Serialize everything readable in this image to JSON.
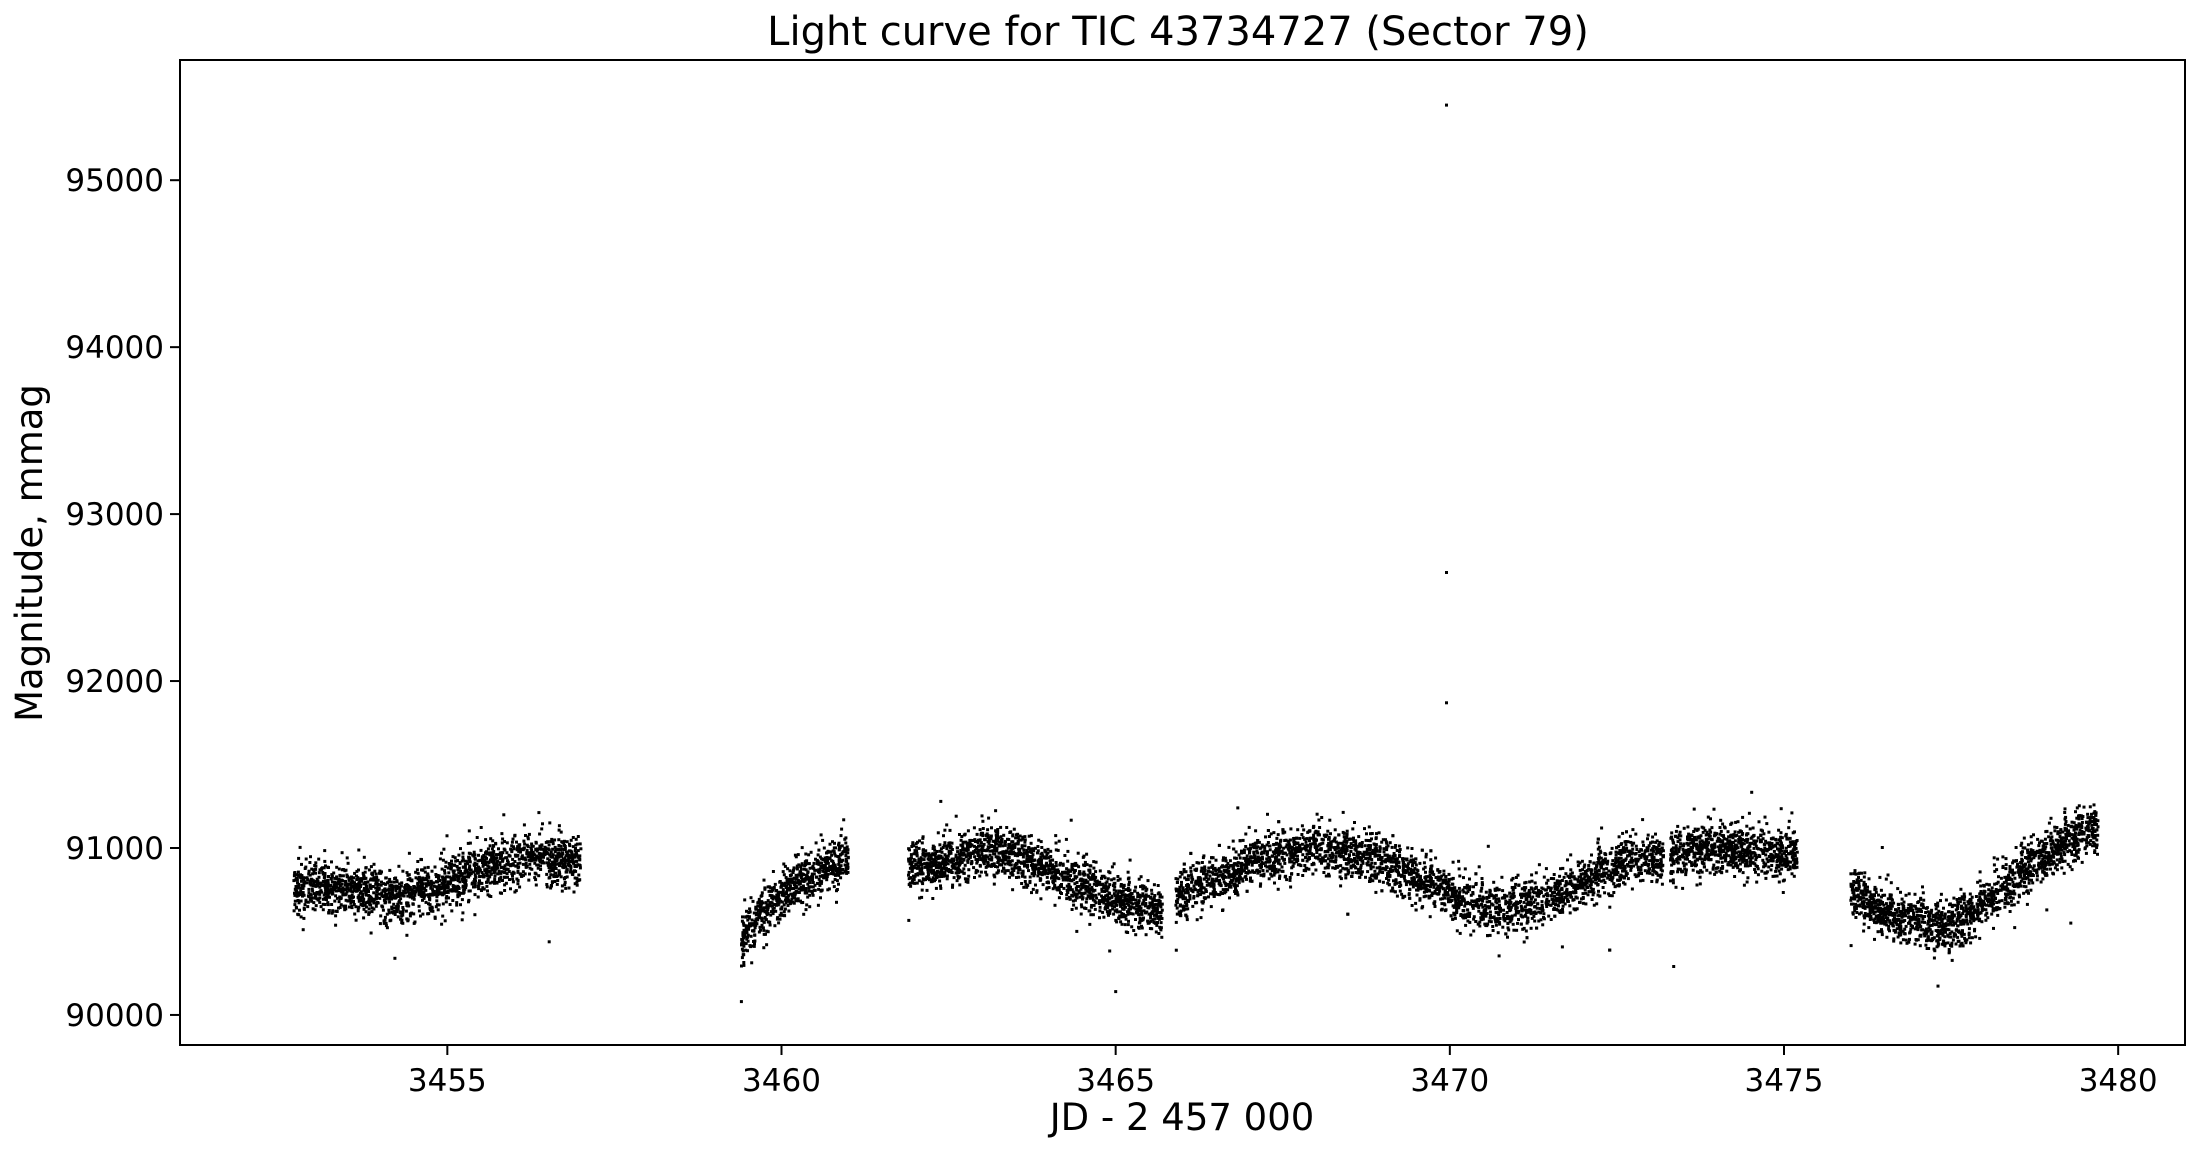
{
  "chart_data": {
    "type": "scatter",
    "title": "Light curve for TIC 43734727 (Sector 79)",
    "xlabel": "JD - 2 457 000",
    "ylabel": "Magnitude, mmag",
    "xlim": [
      3451.0,
      3481.0
    ],
    "ylim": [
      89820,
      95720
    ],
    "xticks": [
      3455,
      3460,
      3465,
      3470,
      3475,
      3480
    ],
    "yticks": [
      90000,
      91000,
      92000,
      93000,
      94000,
      95000
    ],
    "xtick_labels": [
      "3455",
      "3460",
      "3465",
      "3470",
      "3475",
      "3480"
    ],
    "ytick_labels": [
      "90000",
      "91000",
      "92000",
      "93000",
      "94000",
      "95000"
    ],
    "grid": false,
    "marker_color": "#000000",
    "series": [
      {
        "description_of_trend": "dense band of points, scatter about +/-100 mmag around the listed trend",
        "segments": [
          {
            "x": [
              3452.7,
              3453.5,
              3454.3,
              3455.2,
              3456.1,
              3457.0
            ],
            "y": [
              90760,
              90760,
              90700,
              90820,
              90950,
              90900
            ]
          },
          {
            "x": [
              3459.4,
              3459.7,
              3460.0,
              3460.4,
              3460.7,
              3461.0
            ],
            "y": [
              90440,
              90600,
              90720,
              90820,
              90890,
              90930
            ]
          },
          {
            "x": [
              3461.9,
              3462.5,
              3463.1,
              3463.8,
              3464.5,
              3465.2,
              3465.7
            ],
            "y": [
              90880,
              90930,
              91000,
              90900,
              90780,
              90660,
              90620
            ]
          },
          {
            "x": [
              3465.9,
              3466.5,
              3467.2,
              3468.0,
              3468.8,
              3469.6,
              3470.3,
              3471.0,
              3471.8,
              3472.5,
              3473.2
            ],
            "y": [
              90700,
              90820,
              90950,
              91000,
              90950,
              90800,
              90660,
              90640,
              90750,
              90900,
              90940
            ]
          },
          {
            "x": [
              3473.3,
              3473.8,
              3474.3,
              3474.8,
              3475.2
            ],
            "y": [
              90950,
              91000,
              90980,
              90970,
              90960
            ]
          },
          {
            "x": [
              3476.0,
              3476.6,
              3477.1,
              3477.5,
              3478.1,
              3478.7,
              3479.2,
              3479.7
            ],
            "y": [
              90730,
              90620,
              90560,
              90520,
              90700,
              90900,
              91020,
              91120
            ]
          }
        ],
        "outliers": [
          {
            "x": 3469.95,
            "y": 95450
          },
          {
            "x": 3469.95,
            "y": 92650
          },
          {
            "x": 3469.95,
            "y": 91870
          },
          {
            "x": 3459.4,
            "y": 90080
          },
          {
            "x": 3465.0,
            "y": 90140
          },
          {
            "x": 3473.35,
            "y": 90290
          }
        ]
      }
    ]
  }
}
